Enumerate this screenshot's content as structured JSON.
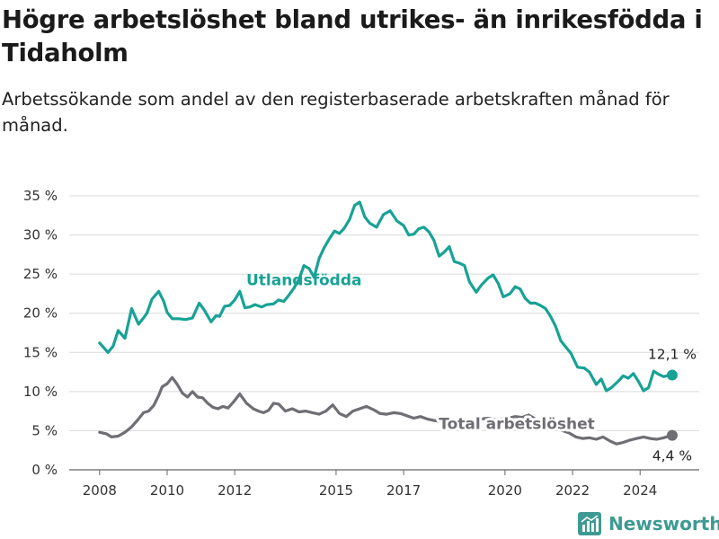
{
  "title": "Högre arbetslöshet bland utrikes- än inrikesfödda i Tidaholm",
  "subtitle": "Arbetssökande som andel av den registerbaserade arbetskraften månad för månad.",
  "brand": {
    "name": "Newsworthy",
    "icon": "newsworthy-logo-icon",
    "color": "#3e9a92"
  },
  "chart_data": {
    "type": "line",
    "title": "",
    "xlabel": "",
    "ylabel": "",
    "ylim": [
      0,
      35
    ],
    "yticks": [
      0,
      5,
      10,
      15,
      20,
      25,
      30,
      35
    ],
    "ytick_labels": [
      "0 %",
      "5 %",
      "10 %",
      "15 %",
      "20 %",
      "25 %",
      "30 %",
      "35 %"
    ],
    "xticks": [
      2008,
      2010,
      2012,
      2015,
      2017,
      2020,
      2022,
      2024
    ],
    "xlim": [
      2007.1,
      2025.75
    ],
    "grid": true,
    "series": [
      {
        "name": "Utlandsfödda",
        "color": "#17a295",
        "end_label": "12,1 %",
        "x": [
          2008,
          2008.25,
          2008.4,
          2008.55,
          2008.75,
          2008.95,
          2009.15,
          2009.3,
          2009.4,
          2009.55,
          2009.75,
          2009.9,
          2010,
          2010.15,
          2010.35,
          2010.55,
          2010.75,
          2010.95,
          2011.1,
          2011.3,
          2011.45,
          2011.55,
          2011.7,
          2011.85,
          2012,
          2012.15,
          2012.3,
          2012.45,
          2012.6,
          2012.8,
          2012.95,
          2013.15,
          2013.3,
          2013.45,
          2013.6,
          2013.75,
          2013.9,
          2014.05,
          2014.2,
          2014.35,
          2014.5,
          2014.65,
          2014.8,
          2014.95,
          2015.1,
          2015.25,
          2015.4,
          2015.55,
          2015.7,
          2015.85,
          2016,
          2016.2,
          2016.4,
          2016.6,
          2016.8,
          2017,
          2017.15,
          2017.3,
          2017.45,
          2017.6,
          2017.75,
          2017.9,
          2018.05,
          2018.2,
          2018.35,
          2018.5,
          2018.65,
          2018.8,
          2018.95,
          2019.15,
          2019.3,
          2019.5,
          2019.65,
          2019.8,
          2019.95,
          2020.15,
          2020.3,
          2020.45,
          2020.6,
          2020.75,
          2020.9,
          2021.05,
          2021.2,
          2021.35,
          2021.5,
          2021.65,
          2021.8,
          2021.95,
          2022.15,
          2022.35,
          2022.5,
          2022.7,
          2022.85,
          2023,
          2023.15,
          2023.35,
          2023.5,
          2023.65,
          2023.8,
          2023.95,
          2024.1,
          2024.25,
          2024.4,
          2024.55,
          2024.7,
          2024.85,
          2024.95
        ],
        "values": [
          16.2,
          15.0,
          15.8,
          17.8,
          16.8,
          20.6,
          18.6,
          19.4,
          20.0,
          21.8,
          22.8,
          21.5,
          20.1,
          19.3,
          19.3,
          19.2,
          19.4,
          21.3,
          20.4,
          18.9,
          19.7,
          19.6,
          20.9,
          21.0,
          21.7,
          22.8,
          20.7,
          20.8,
          21.1,
          20.8,
          21.1,
          21.2,
          21.7,
          21.5,
          22.3,
          23.2,
          24.3,
          26.1,
          25.7,
          24.6,
          27.0,
          28.4,
          29.5,
          30.5,
          30.2,
          30.9,
          32.0,
          33.8,
          34.2,
          32.3,
          31.5,
          31.0,
          32.6,
          33.1,
          31.8,
          31.2,
          30.0,
          30.1,
          30.8,
          31.0,
          30.4,
          29.3,
          27.3,
          27.8,
          28.5,
          26.6,
          26.4,
          26.1,
          24.0,
          22.7,
          23.6,
          24.5,
          24.9,
          23.8,
          22.1,
          22.5,
          23.4,
          23.1,
          21.9,
          21.3,
          21.3,
          21.0,
          20.6,
          19.6,
          18.3,
          16.5,
          15.7,
          14.9,
          13.1,
          13.0,
          12.5,
          10.9,
          11.6,
          10.1,
          10.5,
          11.3,
          12.0,
          11.7,
          12.3,
          11.3,
          10.1,
          10.5,
          12.6,
          12.2,
          11.9,
          12.1,
          12.1
        ]
      },
      {
        "name": "Total arbetslöshet",
        "color": "#6e6e74",
        "end_label": "4,4 %",
        "x": [
          2008,
          2008.2,
          2008.35,
          2008.55,
          2008.75,
          2008.95,
          2009.15,
          2009.3,
          2009.45,
          2009.6,
          2009.75,
          2009.85,
          2010,
          2010.15,
          2010.3,
          2010.45,
          2010.6,
          2010.75,
          2010.9,
          2011.05,
          2011.2,
          2011.35,
          2011.5,
          2011.65,
          2011.8,
          2011.95,
          2012.15,
          2012.35,
          2012.55,
          2012.7,
          2012.85,
          2013,
          2013.15,
          2013.3,
          2013.5,
          2013.7,
          2013.9,
          2014.1,
          2014.3,
          2014.5,
          2014.7,
          2014.9,
          2015.1,
          2015.3,
          2015.5,
          2015.7,
          2015.9,
          2016.1,
          2016.3,
          2016.5,
          2016.7,
          2016.9,
          2017.1,
          2017.3,
          2017.5,
          2017.7,
          2017.9,
          2018.1,
          2018.3,
          2018.5,
          2018.7,
          2018.9,
          2019.1,
          2019.3,
          2019.5,
          2019.7,
          2019.9,
          2020.1,
          2020.3,
          2020.5,
          2020.7,
          2020.9,
          2021.1,
          2021.3,
          2021.5,
          2021.7,
          2021.9,
          2022.1,
          2022.3,
          2022.5,
          2022.7,
          2022.9,
          2023.1,
          2023.3,
          2023.5,
          2023.7,
          2023.9,
          2024.1,
          2024.3,
          2024.5,
          2024.7,
          2024.85,
          2024.95
        ],
        "values": [
          4.8,
          4.6,
          4.2,
          4.3,
          4.8,
          5.5,
          6.5,
          7.3,
          7.5,
          8.2,
          9.5,
          10.6,
          11.0,
          11.8,
          10.9,
          9.8,
          9.3,
          10.0,
          9.3,
          9.2,
          8.5,
          8.0,
          7.8,
          8.1,
          7.9,
          8.6,
          9.7,
          8.5,
          7.8,
          7.5,
          7.3,
          7.6,
          8.5,
          8.4,
          7.5,
          7.8,
          7.4,
          7.5,
          7.3,
          7.1,
          7.5,
          8.3,
          7.2,
          6.8,
          7.5,
          7.8,
          8.1,
          7.7,
          7.2,
          7.1,
          7.3,
          7.2,
          6.9,
          6.6,
          6.8,
          6.5,
          6.3,
          6.2,
          6.0,
          6.1,
          6.0,
          5.9,
          6.1,
          6.5,
          6.6,
          6.4,
          6.5,
          6.6,
          6.8,
          6.7,
          7.0,
          6.5,
          6.0,
          5.5,
          5.2,
          5.0,
          4.7,
          4.2,
          4.0,
          4.1,
          3.9,
          4.2,
          3.7,
          3.3,
          3.5,
          3.8,
          4.0,
          4.2,
          4.0,
          3.9,
          4.1,
          4.3,
          4.4
        ]
      }
    ],
    "annotations": [
      {
        "text": "Utlandsfödda",
        "x": 2014.05,
        "y": 23.6,
        "color": "#17a295"
      },
      {
        "text": "Total arbetslöshet",
        "x": 2020.35,
        "y": 5.25,
        "color": "#6e6e74"
      }
    ]
  }
}
